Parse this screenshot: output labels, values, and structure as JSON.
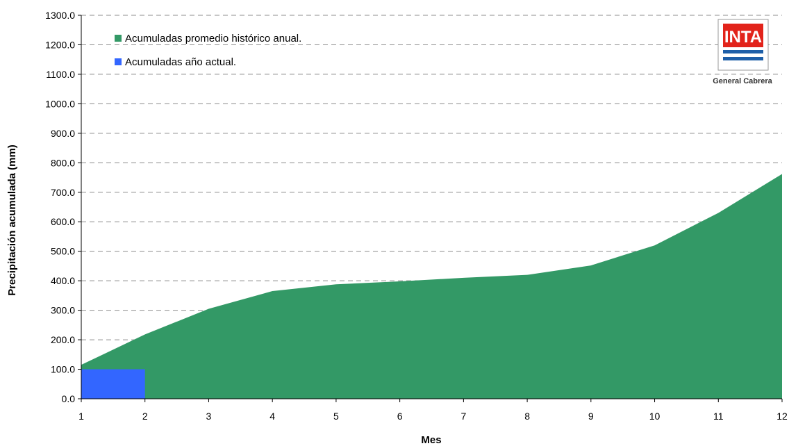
{
  "chart_data": {
    "type": "area",
    "xlabel": "Mes",
    "ylabel": "Precipitación acumulada (mm)",
    "x": [
      1,
      2,
      3,
      4,
      5,
      6,
      7,
      8,
      9,
      10,
      11,
      12
    ],
    "xlim": [
      1,
      12
    ],
    "ylim": [
      0,
      1300
    ],
    "yticks": [
      "0.0",
      "100.0",
      "200.0",
      "300.0",
      "400.0",
      "500.0",
      "600.0",
      "700.0",
      "800.0",
      "900.0",
      "1000.0",
      "1100.0",
      "1200.0",
      "1300.0"
    ],
    "grid": true,
    "legend_position": "top-left",
    "series": [
      {
        "name": "Acumuladas promedio histórico anual.",
        "color": "#339966",
        "x": [
          1,
          2,
          3,
          4,
          5,
          6,
          7,
          8,
          9,
          10,
          11,
          12
        ],
        "values": [
          115,
          218,
          305,
          365,
          388,
          398,
          410,
          420,
          452,
          520,
          630,
          762
        ]
      },
      {
        "name": "Acumuladas año actual.",
        "color": "#3366ff",
        "x": [
          1,
          2
        ],
        "values": [
          100,
          100
        ]
      }
    ]
  },
  "logo": {
    "text": "INTA",
    "caption": "General Cabrera",
    "red": "#e2231a",
    "blue": "#1e5fa8"
  }
}
